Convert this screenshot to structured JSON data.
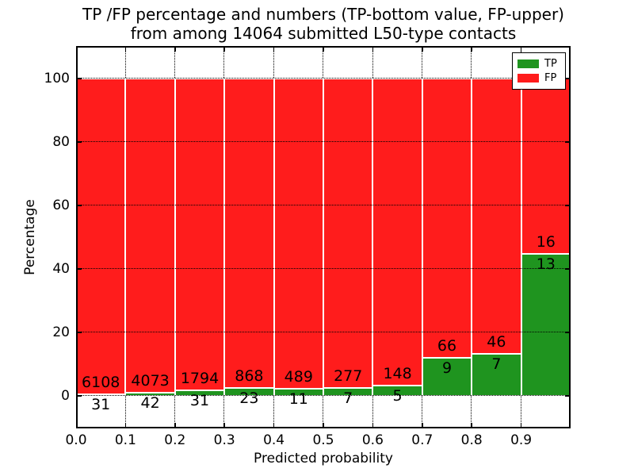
{
  "title": {
    "line1": "TP /FP percentage and numbers (TP-bottom value, FP-upper)",
    "line2": "from among 14064 submitted L50-type contacts"
  },
  "axes": {
    "xlabel": "Predicted probability",
    "ylabel": "Percentage",
    "x_tick_labels": [
      "0.0",
      "0.1",
      "0.2",
      "0.3",
      "0.4",
      "0.5",
      "0.6",
      "0.7",
      "0.8",
      "0.9"
    ],
    "y_tick_labels": [
      "0",
      "20",
      "40",
      "60",
      "80",
      "100"
    ]
  },
  "legend": {
    "entries": [
      {
        "label": "TP",
        "color": "#1f941f"
      },
      {
        "label": "FP",
        "color": "#ff1c1c"
      }
    ]
  },
  "colors": {
    "tp": "#1f941f",
    "fp": "#ff1c1c",
    "bar_edge": "#ffffff",
    "grid": "#000000",
    "background": "#ffffff"
  },
  "chart_data": {
    "type": "bar",
    "stacked": true,
    "normalized_to_percent": true,
    "title": "TP /FP percentage and numbers (TP-bottom value, FP-upper) from among 14064 submitted L50-type contacts",
    "xlabel": "Predicted probability",
    "ylabel": "Percentage",
    "total_contacts": 14064,
    "bin_edges": [
      0.0,
      0.1,
      0.2,
      0.3,
      0.4,
      0.5,
      0.6,
      0.7,
      0.8,
      0.9,
      1.0
    ],
    "categories": [
      "0.0-0.1",
      "0.1-0.2",
      "0.2-0.3",
      "0.3-0.4",
      "0.4-0.5",
      "0.5-0.6",
      "0.6-0.7",
      "0.7-0.8",
      "0.8-0.9",
      "0.9-1.0"
    ],
    "series": [
      {
        "name": "TP",
        "color": "#1f941f",
        "counts": [
          31,
          42,
          31,
          23,
          11,
          7,
          5,
          9,
          7,
          13
        ]
      },
      {
        "name": "FP",
        "color": "#ff1c1c",
        "counts": [
          6108,
          4073,
          1794,
          868,
          489,
          277,
          148,
          66,
          46,
          16
        ]
      }
    ],
    "tp_percent": [
      0.5,
      1.02,
      1.7,
      2.58,
      2.2,
      2.46,
      3.27,
      12.0,
      13.21,
      44.83
    ],
    "fp_percent": [
      99.5,
      98.98,
      98.3,
      97.42,
      97.8,
      97.54,
      96.73,
      88.0,
      86.79,
      55.17
    ],
    "y_ticks": [
      0,
      20,
      40,
      60,
      80,
      100
    ],
    "ylim": [
      -10.25,
      110.25
    ],
    "xlim": [
      0.0,
      1.0
    ],
    "grid": true,
    "grid_style": "dotted",
    "legend_position": "upper right"
  }
}
